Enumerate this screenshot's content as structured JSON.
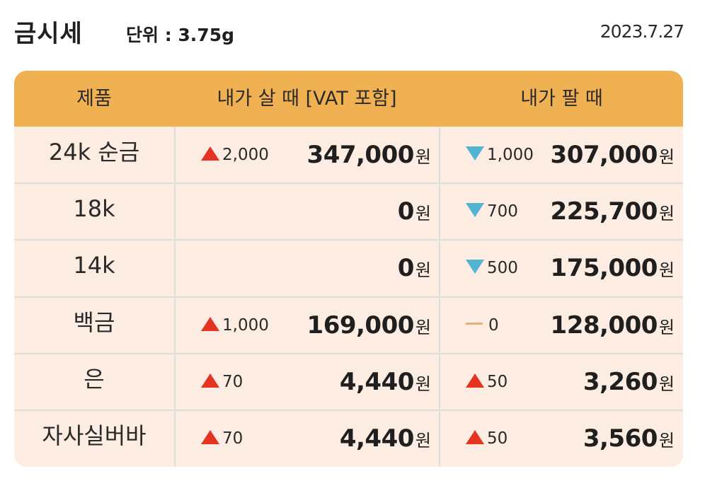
{
  "header": {
    "title": "금시세",
    "unit": "단위 : 3.75g",
    "date": "2023.7.27"
  },
  "table": {
    "columns": [
      "제품",
      "내가 살 때 [VAT 포함]",
      "내가 팔 때"
    ],
    "currency_unit": "원",
    "rows": [
      {
        "product": "24k 순금",
        "buy": {
          "direction": "up",
          "change": "2,000",
          "price": "347,000"
        },
        "sell": {
          "direction": "down",
          "change": "1,000",
          "price": "307,000"
        }
      },
      {
        "product": "18k",
        "buy": {
          "direction": "none",
          "change": "",
          "price": "0"
        },
        "sell": {
          "direction": "down",
          "change": "700",
          "price": "225,700"
        }
      },
      {
        "product": "14k",
        "buy": {
          "direction": "none",
          "change": "",
          "price": "0"
        },
        "sell": {
          "direction": "down",
          "change": "500",
          "price": "175,000"
        }
      },
      {
        "product": "백금",
        "buy": {
          "direction": "up",
          "change": "1,000",
          "price": "169,000"
        },
        "sell": {
          "direction": "flat",
          "change": "0",
          "price": "128,000"
        }
      },
      {
        "product": "은",
        "buy": {
          "direction": "up",
          "change": "70",
          "price": "4,440"
        },
        "sell": {
          "direction": "up",
          "change": "50",
          "price": "3,260"
        }
      },
      {
        "product": "자사실버바",
        "buy": {
          "direction": "up",
          "change": "70",
          "price": "4,440"
        },
        "sell": {
          "direction": "up",
          "change": "50",
          "price": "3,560"
        }
      }
    ]
  },
  "colors": {
    "header_bg": "#f0b153",
    "body_bg": "#fcece1",
    "up": "#e63323",
    "down": "#4fb5d2",
    "flat": "#e2b078",
    "grid": "#dedede"
  }
}
